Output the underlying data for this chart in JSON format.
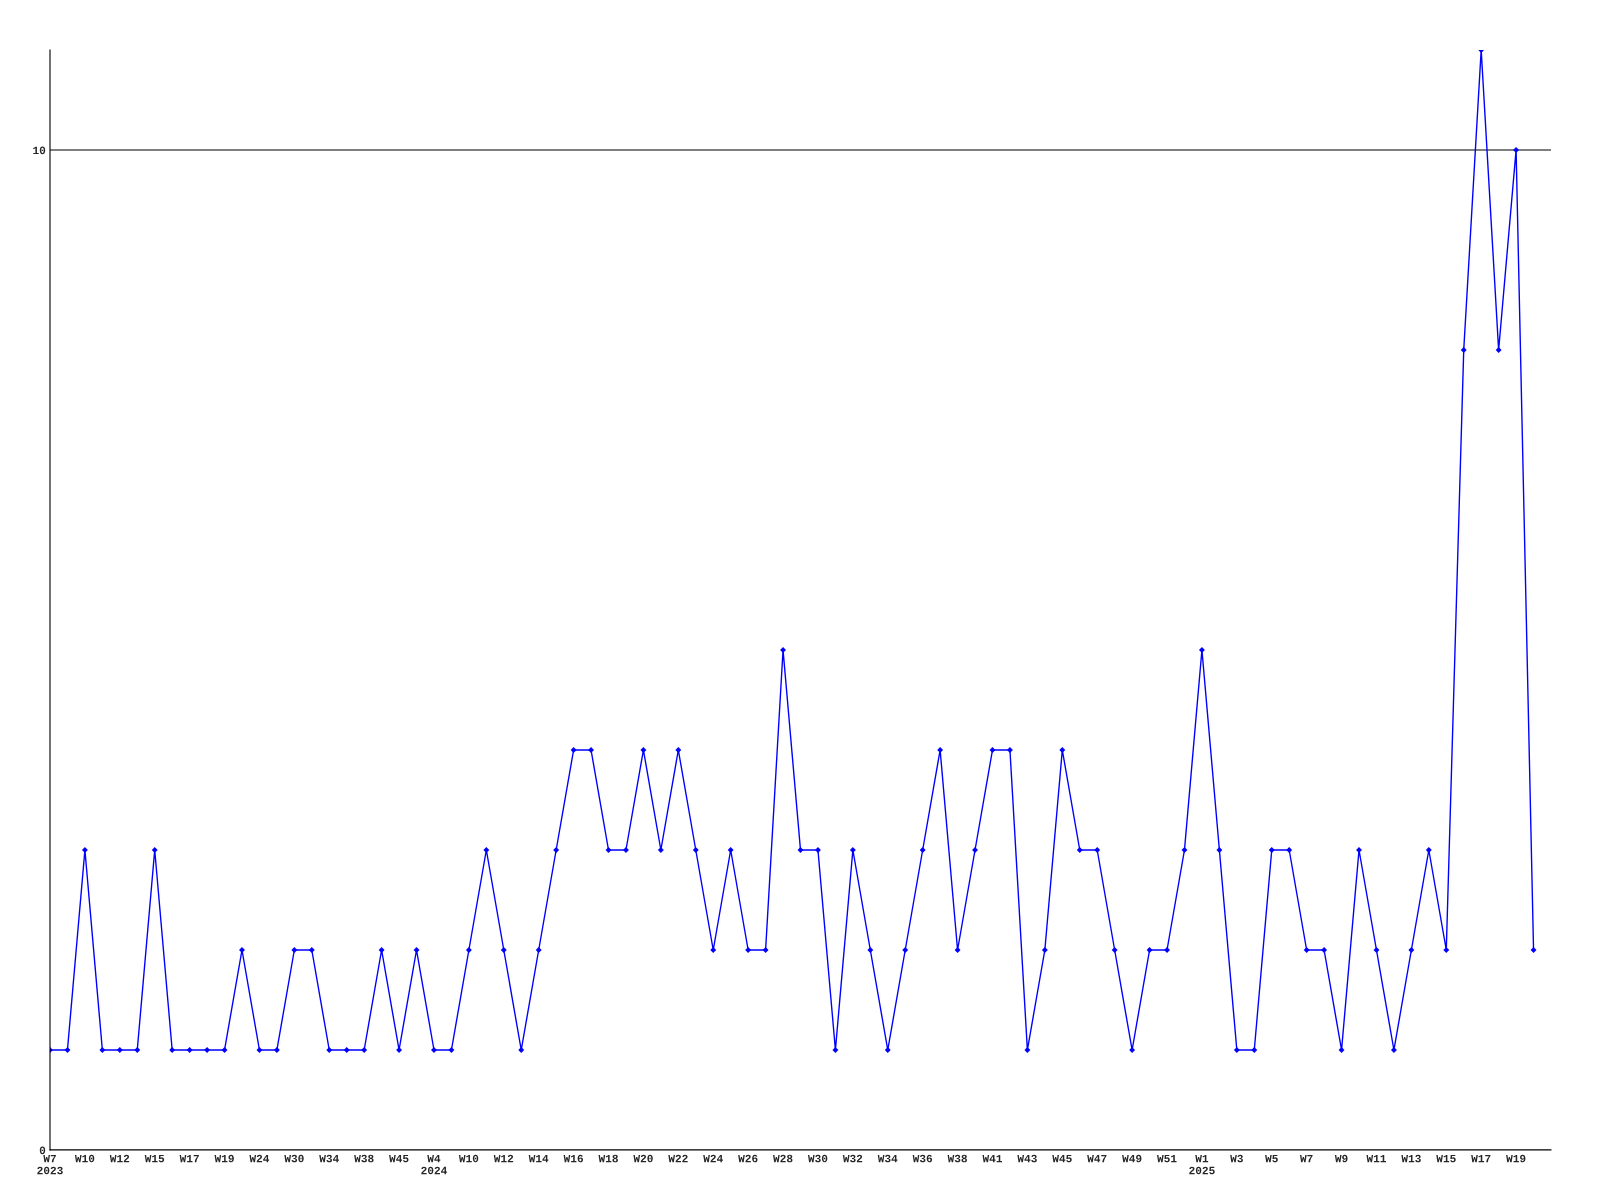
{
  "chart_data": {
    "type": "line",
    "categories": [
      "W7\n2023",
      null,
      "W10",
      null,
      "W12",
      null,
      "W15",
      null,
      "W17",
      null,
      "W19",
      null,
      "W24",
      null,
      "W30",
      null,
      "W34",
      null,
      "W38",
      null,
      "W45",
      null,
      "W4\n2024",
      null,
      "W10",
      null,
      "W12",
      null,
      "W14",
      null,
      "W16",
      null,
      "W18",
      null,
      "W20",
      null,
      "W22",
      null,
      "W24",
      null,
      "W26",
      null,
      "W28",
      null,
      "W30",
      null,
      "W32",
      null,
      "W34",
      null,
      "W36",
      null,
      "W38",
      null,
      "W41",
      null,
      "W43",
      null,
      "W45",
      null,
      "W47",
      null,
      "W49",
      null,
      "W51",
      null,
      "W1\n2025",
      null,
      "W3",
      null,
      "W5",
      null,
      "W7",
      null,
      "W9",
      null,
      "W11",
      null,
      "W13",
      null,
      "W15",
      null,
      "W17",
      null,
      "W19",
      null
    ],
    "series": [
      {
        "color": "#0000ff",
        "values": [
          1,
          1,
          3,
          1,
          1,
          1,
          3,
          1,
          1,
          1,
          1,
          2,
          1,
          1,
          2,
          2,
          1,
          1,
          1,
          2,
          1,
          2,
          1,
          1,
          2,
          3,
          2,
          1,
          2,
          3,
          4,
          4,
          3,
          3,
          4,
          3,
          4,
          3,
          2,
          3,
          2,
          2,
          5,
          3,
          3,
          1,
          3,
          2,
          1,
          2,
          3,
          4,
          2,
          3,
          4,
          4,
          1,
          2,
          4,
          3,
          3,
          2,
          1,
          2,
          2,
          3,
          5,
          3,
          1,
          1,
          3,
          3,
          2,
          2,
          1,
          3,
          2,
          1,
          2,
          3,
          2,
          8,
          11,
          8,
          10,
          2
        ]
      }
    ],
    "ylim": [
      0,
      11
    ],
    "yticks": [
      0,
      10
    ],
    "grid": "y",
    "marker": "diamond",
    "line_style": "solid"
  }
}
